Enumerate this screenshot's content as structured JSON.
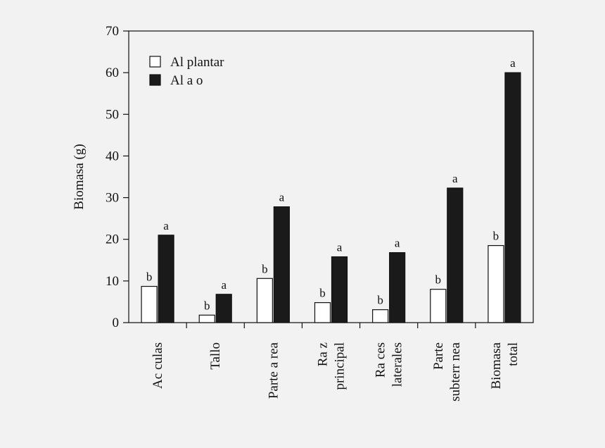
{
  "chart_data": {
    "type": "bar",
    "ylabel": "Biomasa (g)",
    "ylim": [
      0,
      70
    ],
    "yticks": [
      0,
      10,
      20,
      30,
      40,
      50,
      60,
      70
    ],
    "grid": false,
    "legend_position": "top-left",
    "categories": [
      [
        "Ac culas"
      ],
      [
        "Tallo"
      ],
      [
        "Parte a rea"
      ],
      [
        "Ra z",
        "principal"
      ],
      [
        "Ra ces",
        "laterales"
      ],
      [
        "Parte",
        "subterr nea"
      ],
      [
        "Biomasa",
        "total"
      ]
    ],
    "series": [
      {
        "name": "Al plantar",
        "color": "#ffffff",
        "values": [
          8.7,
          1.8,
          10.6,
          4.8,
          3.1,
          8.0,
          18.5
        ],
        "labels": [
          "b",
          "b",
          "b",
          "b",
          "b",
          "b",
          "b"
        ]
      },
      {
        "name": "Al a o",
        "color": "#1a1a1a",
        "values": [
          21.0,
          6.8,
          27.8,
          15.8,
          16.8,
          32.3,
          60.0
        ],
        "labels": [
          "a",
          "a",
          "a",
          "a",
          "a",
          "a",
          "a"
        ]
      }
    ]
  }
}
